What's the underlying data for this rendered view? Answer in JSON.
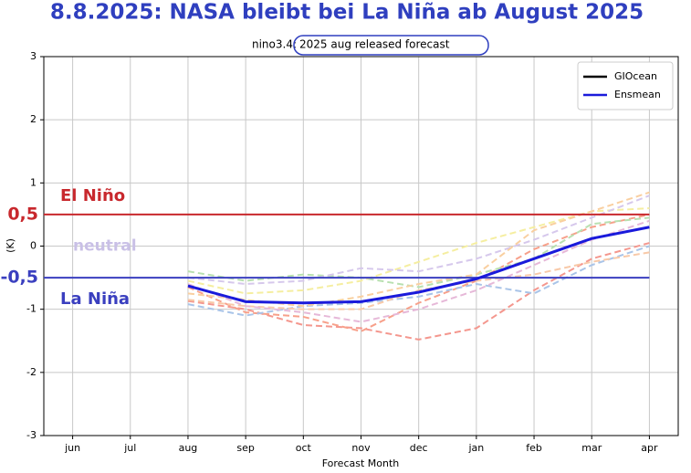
{
  "chart_data": {
    "type": "line",
    "title": "8.8.2025: NASA bleibt bei La Niña ab August 2025",
    "subtitle_prefix": "nino3.4:",
    "subtitle": "2025 aug released forecast",
    "x_label": "Forecast Month",
    "y_label": "(K)",
    "categories": [
      "jun",
      "jul",
      "aug",
      "sep",
      "oct",
      "nov",
      "dec",
      "jan",
      "feb",
      "mar",
      "apr"
    ],
    "ylim": [
      -3,
      3
    ],
    "yticks": [
      -3,
      -2,
      -1,
      0,
      1,
      2,
      3
    ],
    "grid": true,
    "legend": "upper right",
    "series": [
      {
        "name": "GIOcean",
        "color": "#000000",
        "values": [
          null,
          null,
          null,
          null,
          null,
          null,
          null,
          null,
          null,
          null,
          null
        ]
      },
      {
        "name": "Ensmean",
        "color": "#1a1adb",
        "values": [
          null,
          null,
          -0.63,
          -0.88,
          -0.9,
          -0.88,
          -0.73,
          -0.52,
          -0.2,
          0.12,
          0.3
        ]
      }
    ],
    "members": [
      {
        "color": "#f4978e",
        "values": [
          null,
          null,
          -0.87,
          -1.0,
          -1.25,
          -1.3,
          -1.48,
          -1.3,
          -0.7,
          -0.2,
          0.05
        ]
      },
      {
        "color": "#f7a08a",
        "values": [
          null,
          null,
          -0.65,
          -1.05,
          -1.12,
          -1.35,
          -0.9,
          -0.55,
          -0.05,
          0.3,
          0.5
        ]
      },
      {
        "color": "#a9c4e8",
        "values": [
          null,
          null,
          -0.92,
          -1.1,
          -0.95,
          -0.9,
          -0.8,
          -0.6,
          -0.75,
          -0.3,
          0.0
        ]
      },
      {
        "color": "#b8e0b0",
        "values": [
          null,
          null,
          -0.4,
          -0.55,
          -0.45,
          -0.5,
          -0.65,
          -0.45,
          -0.2,
          0.35,
          0.45
        ]
      },
      {
        "color": "#f5eea0",
        "values": [
          null,
          null,
          -0.55,
          -0.75,
          -0.7,
          -0.55,
          -0.25,
          0.05,
          0.3,
          0.55,
          0.6
        ]
      },
      {
        "color": "#f8c9a8",
        "values": [
          null,
          null,
          -0.85,
          -0.95,
          -1.0,
          -1.0,
          -0.7,
          -0.55,
          -0.45,
          -0.25,
          -0.1
        ]
      },
      {
        "color": "#d6c8ec",
        "values": [
          null,
          null,
          -0.5,
          -0.6,
          -0.55,
          -0.35,
          -0.4,
          -0.2,
          0.1,
          0.45,
          0.8
        ]
      },
      {
        "color": "#f9cfa0",
        "values": [
          null,
          null,
          -0.75,
          -0.85,
          -0.95,
          -0.8,
          -0.6,
          -0.45,
          0.25,
          0.55,
          0.85
        ]
      },
      {
        "color": "#e6b8d8",
        "values": [
          null,
          null,
          -0.6,
          -0.95,
          -1.05,
          -1.2,
          -1.0,
          -0.7,
          -0.3,
          0.1,
          0.4
        ]
      }
    ],
    "thresholds": [
      {
        "value": 0.5,
        "label": "0,5",
        "name": "El Niño",
        "color": "#c8282d"
      },
      {
        "value": -0.5,
        "label": "-0,5",
        "name": "La Niña",
        "color": "#3a3fbf"
      }
    ],
    "neutral": {
      "value": 0,
      "label": "neutral",
      "color": "#c9c0e6"
    }
  }
}
